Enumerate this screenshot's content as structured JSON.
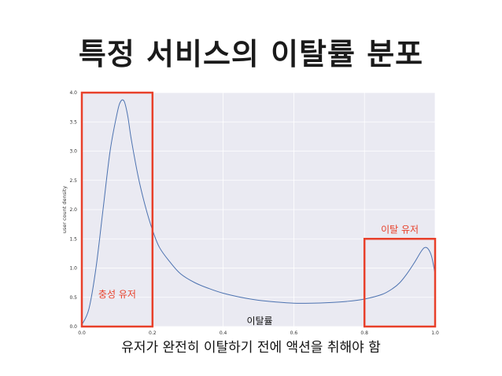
{
  "slide": {
    "title": "특정 서비스의 이탈률 분포",
    "subtitle": "유저가 완전히 이탈하기 전에 액션을 취해야 함"
  },
  "colors": {
    "plot_bg": "#eaeaf2",
    "grid": "#ffffff",
    "line": "#4c72b0",
    "highlight": "#e8402a"
  },
  "chart_data": {
    "type": "line",
    "xlabel": "이탈률",
    "ylabel": "user count density",
    "xlim": [
      0.0,
      1.0
    ],
    "ylim": [
      0.0,
      4.0
    ],
    "x_ticks": [
      "0.0",
      "0.2",
      "0.4",
      "0.6",
      "0.8",
      "1.0"
    ],
    "y_ticks": [
      "0.0",
      "0.5",
      "1.0",
      "1.5",
      "2.0",
      "2.5",
      "3.0",
      "3.5",
      "4.0"
    ],
    "grid": true,
    "series": [
      {
        "x": [
          0.0,
          0.02,
          0.04,
          0.06,
          0.08,
          0.1,
          0.11,
          0.12,
          0.13,
          0.14,
          0.16,
          0.18,
          0.2,
          0.22,
          0.25,
          0.28,
          0.32,
          0.36,
          0.4,
          0.45,
          0.5,
          0.55,
          0.6,
          0.65,
          0.7,
          0.75,
          0.8,
          0.85,
          0.88,
          0.9,
          0.92,
          0.94,
          0.96,
          0.97,
          0.98,
          0.99,
          1.0
        ],
        "y": [
          0.03,
          0.3,
          1.0,
          2.0,
          3.0,
          3.65,
          3.85,
          3.85,
          3.6,
          3.2,
          2.55,
          2.05,
          1.65,
          1.35,
          1.1,
          0.9,
          0.75,
          0.65,
          0.57,
          0.5,
          0.45,
          0.42,
          0.4,
          0.4,
          0.41,
          0.43,
          0.47,
          0.55,
          0.65,
          0.75,
          0.9,
          1.08,
          1.28,
          1.35,
          1.33,
          1.2,
          0.9
        ]
      }
    ],
    "annotations": [
      {
        "label": "충성 유저",
        "x_range": [
          0.0,
          0.2
        ],
        "y_range": [
          0.0,
          4.0
        ]
      },
      {
        "label": "이탈 유저",
        "x_range": [
          0.8,
          1.0
        ],
        "y_range": [
          0.0,
          1.5
        ]
      }
    ]
  }
}
